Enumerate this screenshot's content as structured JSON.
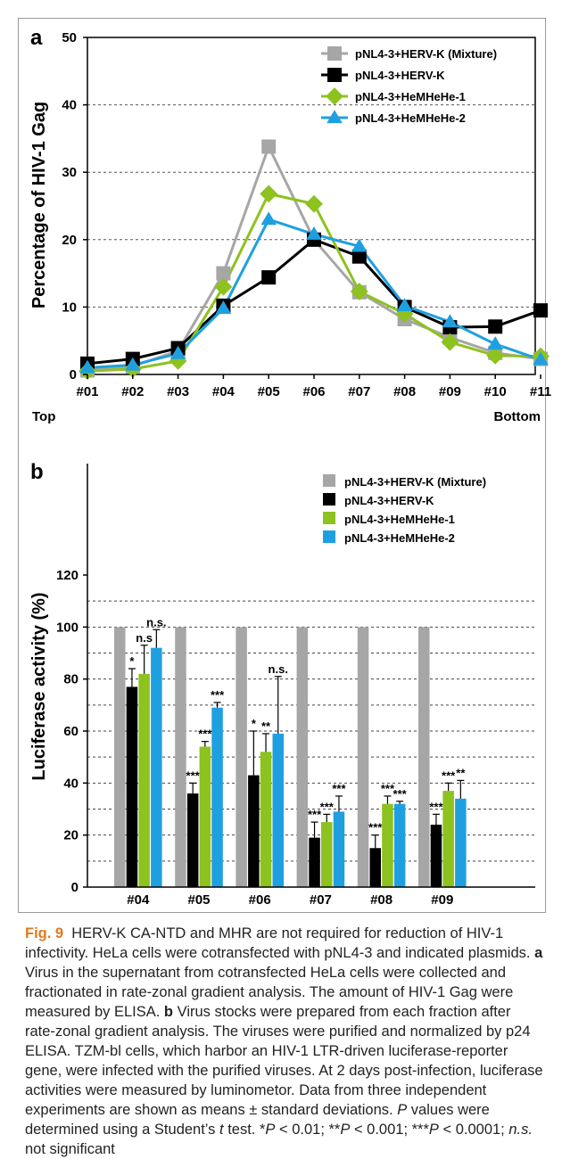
{
  "chart_data": [
    {
      "panel": "a",
      "type": "line",
      "ylabel": "Percentage of  HIV-1 Gag",
      "ylim": [
        0,
        50
      ],
      "yticks": [
        0,
        10,
        20,
        30,
        40,
        50
      ],
      "categories": [
        "#01",
        "#02",
        "#03",
        "#04",
        "#05",
        "#06",
        "#07",
        "#08",
        "#09",
        "#10",
        "#11"
      ],
      "x_end_labels": {
        "left": "Top",
        "right": "Bottom"
      },
      "grid": "dashed-horizontal",
      "legend_position": "top-right",
      "series": [
        {
          "name": "pNL4-3+HERV-K (Mixture)",
          "color": "#a6a6a6",
          "marker": "square",
          "values": [
            0.6,
            1.2,
            3.5,
            15.0,
            33.8,
            20.0,
            12.2,
            8.2,
            5.5,
            3.2,
            2.3
          ]
        },
        {
          "name": "pNL4-3+HERV-K",
          "color": "#000000",
          "marker": "square",
          "values": [
            1.6,
            2.3,
            3.9,
            10.2,
            14.4,
            20.0,
            17.5,
            10.0,
            7.0,
            7.1,
            9.5
          ]
        },
        {
          "name": "pNL4-3+HeMHeHe-1",
          "color": "#8dc21f",
          "marker": "diamond",
          "values": [
            0.5,
            0.8,
            2.0,
            13.0,
            26.8,
            25.3,
            12.3,
            9.0,
            4.8,
            2.8,
            2.7
          ]
        },
        {
          "name": "pNL4-3+HeMHeHe-2",
          "color": "#1ea0e0",
          "marker": "triangle",
          "values": [
            1.0,
            1.4,
            3.1,
            9.8,
            23.0,
            20.8,
            19.0,
            10.2,
            7.8,
            4.5,
            2.2
          ]
        }
      ]
    },
    {
      "panel": "b",
      "type": "bar",
      "ylabel": "Luciferase activity (%)",
      "ylim": [
        0,
        120
      ],
      "yticks": [
        0,
        20,
        40,
        60,
        80,
        100,
        120
      ],
      "categories": [
        "#04",
        "#05",
        "#06",
        "#07",
        "#08",
        "#09"
      ],
      "grid": "dashed-horizontal",
      "legend_position": "top-right",
      "series": [
        {
          "name": "pNL4-3+HERV-K (Mixture)",
          "color": "#a6a6a6",
          "values": [
            100,
            100,
            100,
            100,
            100,
            100
          ],
          "errors": [
            0,
            0,
            0,
            0,
            0,
            0
          ],
          "sig": [
            "",
            "",
            "",
            "",
            "",
            ""
          ]
        },
        {
          "name": "pNL4-3+HERV-K",
          "color": "#000000",
          "values": [
            77,
            36,
            43,
            19,
            15,
            24
          ],
          "errors": [
            7,
            4,
            17,
            6,
            5,
            4
          ],
          "sig": [
            "*",
            "***",
            "*",
            "***",
            "***",
            "***"
          ]
        },
        {
          "name": "pNL4-3+HeMHeHe-1",
          "color": "#8dc21f",
          "values": [
            82,
            54,
            52,
            25,
            32,
            37
          ],
          "errors": [
            11,
            2,
            7,
            3,
            3,
            3
          ],
          "sig": [
            "n.s",
            "***",
            "**",
            "***",
            "***",
            "***"
          ]
        },
        {
          "name": "pNL4-3+HeMHeHe-2",
          "color": "#1ea0e0",
          "values": [
            92,
            69,
            59,
            29,
            32,
            34
          ],
          "errors": [
            7,
            2,
            22,
            6,
            1,
            7
          ],
          "sig": [
            "n.s.",
            "***",
            "n.s.",
            "***",
            "***",
            "**"
          ]
        }
      ]
    }
  ],
  "caption": {
    "fig_label": "Fig. 9",
    "title": "HERV-K CA-NTD and MHR are not required for reduction of HIV-1 infectivity. HeLa cells were cotransfected with pNL4-3 and indicated plasmids.",
    "a_letter": "a",
    "a_text": "Virus in the supernatant from cotransfected HeLa cells were collected and fractionated in rate-zonal gradient analysis. The amount of HIV-1 Gag were measured by ELISA.",
    "b_letter": "b",
    "b_text": "Virus stocks were prepared from each fraction after rate-zonal gradient analysis. The viruses were purified and normalized by p24 ELISA. TZM-bl cells, which harbor an HIV-1 LTR-driven luciferase-reporter gene, were infected with the purified viruses. At 2 days post-infection, luciferase activities were measured by luminometor. Data from three independent experiments are shown as means ± standard deviations.",
    "stats_1": "P",
    "stats_2": " values were determined using a Student’s ",
    "stats_3": "t",
    "stats_4": " test. *",
    "stats_5": "P",
    "stats_6": " < 0.01; **",
    "stats_7": "P",
    "stats_8": " < 0.001; ***",
    "stats_9": "P",
    "stats_10": " < 0.0001; ",
    "stats_11": "n.s.",
    "stats_12": " not significant"
  }
}
